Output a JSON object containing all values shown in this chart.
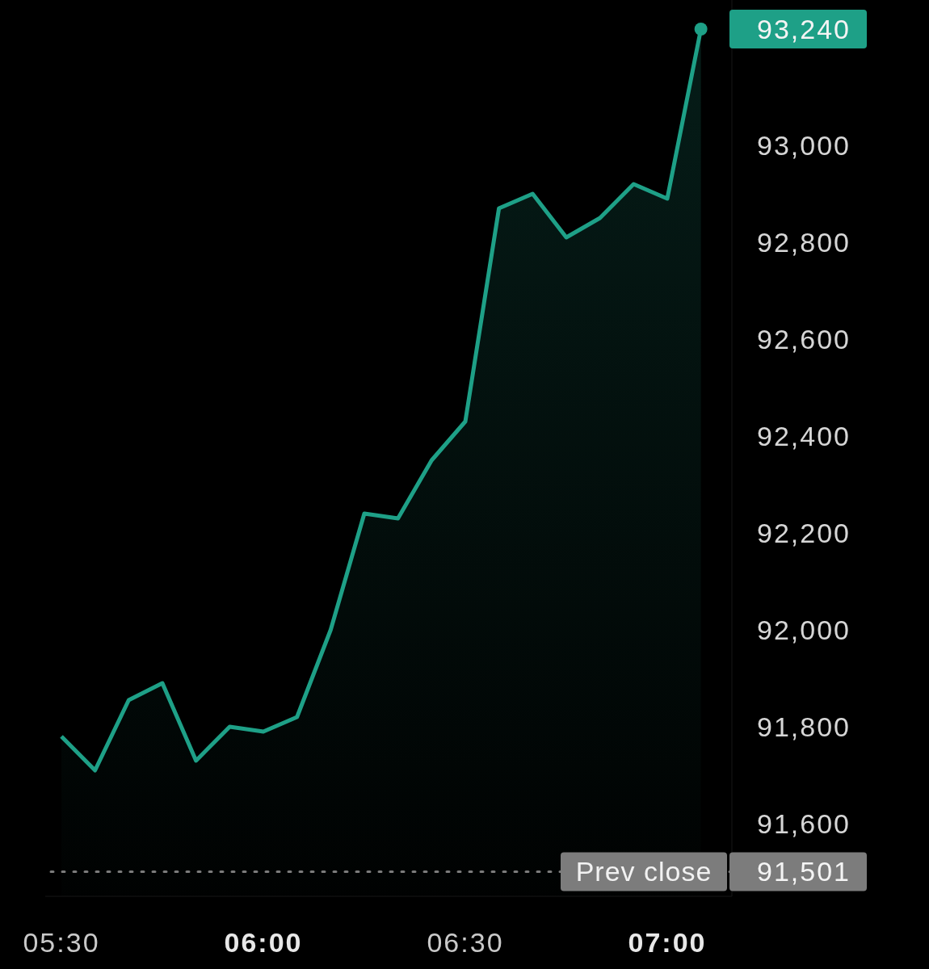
{
  "chart_data": {
    "type": "area",
    "x": [
      5.5,
      5.5833,
      5.6667,
      5.75,
      5.8333,
      5.9167,
      6,
      6.0833,
      6.1667,
      6.25,
      6.3333,
      6.4167,
      6.5,
      6.5833,
      6.6667,
      6.75,
      6.8333,
      6.9167,
      7,
      7.0833
    ],
    "series": [
      {
        "color": "#1ea087",
        "values": [
          91780,
          91710,
          91855,
          91890,
          91730,
          91800,
          91790,
          91820,
          92000,
          92240,
          92230,
          92350,
          92430,
          92870,
          92900,
          92810,
          92850,
          92920,
          92890,
          93240
        ]
      }
    ],
    "xlim": [
      5.46,
      7.16
    ],
    "ylim": [
      91450,
      93300
    ],
    "xticks": [
      {
        "value": 5.5,
        "label": "05:30"
      },
      {
        "value": 6,
        "label": "06:00"
      },
      {
        "value": 6.5,
        "label": "06:30"
      },
      {
        "value": 7,
        "label": "07:00"
      }
    ],
    "yticks": [
      {
        "value": 91501,
        "label": "91,501"
      },
      {
        "value": 91600,
        "label": "91,600"
      },
      {
        "value": 91800,
        "label": "91,800"
      },
      {
        "value": 92000,
        "label": "92,000"
      },
      {
        "value": 92200,
        "label": "92,200"
      },
      {
        "value": 92400,
        "label": "92,400"
      },
      {
        "value": 92600,
        "label": "92,600"
      },
      {
        "value": 92800,
        "label": "92,800"
      },
      {
        "value": 93000,
        "label": "93,000"
      }
    ],
    "marker": "none",
    "ref_lines": [
      {
        "axis": "y",
        "value": 91501,
        "label": "Prev close",
        "color": "#7c7c7c",
        "line_style": "dotted"
      }
    ],
    "annotations": [
      {
        "text": "93,240",
        "x": 7.0833,
        "y": 93240
      }
    ]
  }
}
